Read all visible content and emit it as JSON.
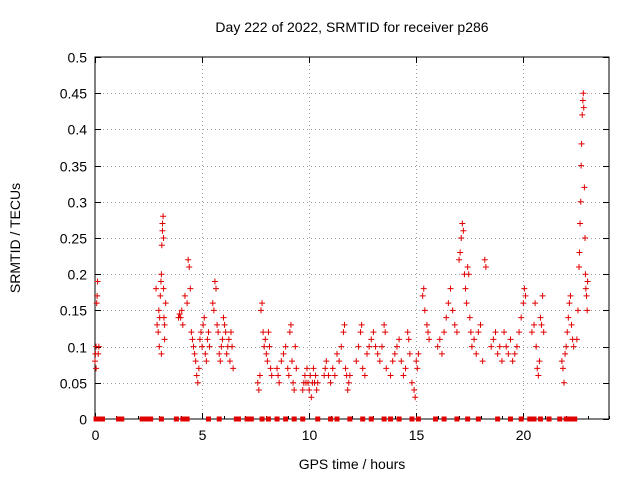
{
  "chart_data": {
    "type": "scatter",
    "title": "Day 222 of 2022, SRMTID for receiver p286",
    "xlabel": "GPS time / hours",
    "ylabel": "SRMTID / TECUs",
    "xlim": [
      0,
      24
    ],
    "ylim": [
      0,
      0.5
    ],
    "xticks": [
      0,
      5,
      10,
      15,
      20
    ],
    "yticks": [
      0,
      0.05,
      0.1,
      0.15,
      0.2,
      0.25,
      0.3,
      0.35,
      0.4,
      0.45,
      0.5
    ],
    "ytick_labels": [
      "0",
      "0.05",
      "0.1",
      "0.15",
      "0.2",
      "0.25",
      "0.3",
      "0.35",
      "0.4",
      "0.45",
      "0.5"
    ],
    "grid": true,
    "marker": "+",
    "color": "#e00000",
    "series": [
      {
        "name": "SRMTID",
        "points": [
          [
            0.0,
            0.08
          ],
          [
            0.02,
            0.09
          ],
          [
            0.05,
            0.1
          ],
          [
            0.05,
            0.07
          ],
          [
            0.08,
            0.16
          ],
          [
            0.1,
            0.17
          ],
          [
            0.12,
            0.19
          ],
          [
            0.15,
            0.09
          ],
          [
            0.18,
            0.1
          ],
          [
            2.9,
            0.13
          ],
          [
            2.95,
            0.12
          ],
          [
            2.98,
            0.15
          ],
          [
            3.0,
            0.1
          ],
          [
            3.02,
            0.14
          ],
          [
            3.05,
            0.17
          ],
          [
            3.08,
            0.19
          ],
          [
            3.1,
            0.2
          ],
          [
            3.12,
            0.24
          ],
          [
            3.15,
            0.26
          ],
          [
            3.15,
            0.27
          ],
          [
            3.18,
            0.28
          ],
          [
            3.2,
            0.25
          ],
          [
            3.2,
            0.18
          ],
          [
            3.22,
            0.14
          ],
          [
            3.25,
            0.13
          ],
          [
            3.25,
            0.11
          ],
          [
            3.1,
            0.09
          ],
          [
            3.3,
            0.16
          ],
          [
            2.85,
            0.18
          ],
          [
            3.9,
            0.14
          ],
          [
            3.95,
            0.145
          ],
          [
            4.0,
            0.14
          ],
          [
            4.05,
            0.15
          ],
          [
            4.1,
            0.13
          ],
          [
            4.2,
            0.17
          ],
          [
            4.3,
            0.16
          ],
          [
            4.35,
            0.22
          ],
          [
            4.4,
            0.21
          ],
          [
            4.45,
            0.18
          ],
          [
            4.5,
            0.12
          ],
          [
            4.55,
            0.11
          ],
          [
            4.6,
            0.1
          ],
          [
            4.65,
            0.09
          ],
          [
            4.7,
            0.08
          ],
          [
            4.75,
            0.06
          ],
          [
            4.8,
            0.05
          ],
          [
            4.85,
            0.07
          ],
          [
            4.9,
            0.11
          ],
          [
            4.95,
            0.12
          ],
          [
            5.0,
            0.1
          ],
          [
            5.05,
            0.13
          ],
          [
            5.1,
            0.14
          ],
          [
            5.15,
            0.09
          ],
          [
            5.2,
            0.08
          ],
          [
            5.25,
            0.11
          ],
          [
            5.3,
            0.12
          ],
          [
            5.35,
            0.1
          ],
          [
            5.5,
            0.16
          ],
          [
            5.55,
            0.15
          ],
          [
            5.6,
            0.19
          ],
          [
            5.65,
            0.18
          ],
          [
            5.7,
            0.13
          ],
          [
            5.75,
            0.12
          ],
          [
            5.8,
            0.09
          ],
          [
            5.85,
            0.08
          ],
          [
            5.9,
            0.1
          ],
          [
            5.95,
            0.11
          ],
          [
            6.0,
            0.14
          ],
          [
            6.05,
            0.13
          ],
          [
            6.1,
            0.12
          ],
          [
            6.15,
            0.09
          ],
          [
            6.2,
            0.1
          ],
          [
            6.25,
            0.11
          ],
          [
            6.3,
            0.08
          ],
          [
            6.35,
            0.12
          ],
          [
            6.4,
            0.1
          ],
          [
            6.45,
            0.07
          ],
          [
            7.6,
            0.05
          ],
          [
            7.65,
            0.04
          ],
          [
            7.7,
            0.06
          ],
          [
            7.75,
            0.15
          ],
          [
            7.8,
            0.16
          ],
          [
            7.85,
            0.12
          ],
          [
            7.9,
            0.1
          ],
          [
            7.95,
            0.11
          ],
          [
            8.0,
            0.09
          ],
          [
            8.05,
            0.08
          ],
          [
            8.1,
            0.12
          ],
          [
            8.15,
            0.1
          ],
          [
            8.2,
            0.07
          ],
          [
            8.25,
            0.06
          ],
          [
            8.5,
            0.07
          ],
          [
            8.55,
            0.06
          ],
          [
            8.6,
            0.05
          ],
          [
            8.7,
            0.08
          ],
          [
            8.8,
            0.09
          ],
          [
            8.9,
            0.1
          ],
          [
            9.0,
            0.07
          ],
          [
            9.05,
            0.06
          ],
          [
            9.1,
            0.12
          ],
          [
            9.15,
            0.13
          ],
          [
            9.2,
            0.08
          ],
          [
            9.25,
            0.05
          ],
          [
            9.3,
            0.04
          ],
          [
            9.35,
            0.1
          ],
          [
            9.4,
            0.07
          ],
          [
            9.7,
            0.04
          ],
          [
            9.75,
            0.05
          ],
          [
            9.8,
            0.06
          ],
          [
            9.85,
            0.05
          ],
          [
            9.9,
            0.07
          ],
          [
            9.95,
            0.05
          ],
          [
            10.0,
            0.04
          ],
          [
            10.05,
            0.06
          ],
          [
            10.1,
            0.03
          ],
          [
            10.15,
            0.05
          ],
          [
            10.2,
            0.07
          ],
          [
            10.25,
            0.05
          ],
          [
            10.3,
            0.06
          ],
          [
            10.35,
            0.04
          ],
          [
            10.4,
            0.05
          ],
          [
            10.7,
            0.06
          ],
          [
            10.75,
            0.07
          ],
          [
            10.8,
            0.08
          ],
          [
            10.9,
            0.06
          ],
          [
            11.0,
            0.05
          ],
          [
            11.1,
            0.07
          ],
          [
            11.2,
            0.06
          ],
          [
            11.3,
            0.09
          ],
          [
            11.4,
            0.08
          ],
          [
            11.5,
            0.1
          ],
          [
            11.6,
            0.12
          ],
          [
            11.65,
            0.13
          ],
          [
            11.7,
            0.07
          ],
          [
            11.75,
            0.06
          ],
          [
            11.8,
            0.04
          ],
          [
            11.85,
            0.05
          ],
          [
            11.9,
            0.06
          ],
          [
            12.2,
            0.08
          ],
          [
            12.3,
            0.1
          ],
          [
            12.4,
            0.12
          ],
          [
            12.45,
            0.13
          ],
          [
            12.5,
            0.07
          ],
          [
            12.6,
            0.06
          ],
          [
            12.7,
            0.09
          ],
          [
            12.8,
            0.1
          ],
          [
            12.9,
            0.11
          ],
          [
            13.0,
            0.12
          ],
          [
            13.1,
            0.1
          ],
          [
            13.2,
            0.09
          ],
          [
            13.3,
            0.08
          ],
          [
            13.4,
            0.1
          ],
          [
            13.5,
            0.13
          ],
          [
            13.55,
            0.12
          ],
          [
            13.6,
            0.07
          ],
          [
            13.8,
            0.06
          ],
          [
            13.9,
            0.08
          ],
          [
            14.0,
            0.09
          ],
          [
            14.1,
            0.1
          ],
          [
            14.2,
            0.11
          ],
          [
            14.3,
            0.08
          ],
          [
            14.4,
            0.06
          ],
          [
            14.5,
            0.07
          ],
          [
            14.6,
            0.12
          ],
          [
            14.65,
            0.11
          ],
          [
            14.7,
            0.09
          ],
          [
            14.8,
            0.05
          ],
          [
            14.9,
            0.04
          ],
          [
            14.95,
            0.03
          ],
          [
            15.0,
            0.08
          ],
          [
            15.05,
            0.07
          ],
          [
            15.1,
            0.09
          ],
          [
            15.3,
            0.17
          ],
          [
            15.35,
            0.18
          ],
          [
            15.4,
            0.15
          ],
          [
            15.5,
            0.13
          ],
          [
            15.55,
            0.12
          ],
          [
            15.6,
            0.11
          ],
          [
            16.0,
            0.1
          ],
          [
            16.1,
            0.11
          ],
          [
            16.2,
            0.09
          ],
          [
            16.3,
            0.12
          ],
          [
            16.4,
            0.14
          ],
          [
            16.5,
            0.16
          ],
          [
            16.6,
            0.18
          ],
          [
            16.7,
            0.15
          ],
          [
            16.8,
            0.13
          ],
          [
            16.9,
            0.12
          ],
          [
            17.0,
            0.22
          ],
          [
            17.05,
            0.23
          ],
          [
            17.1,
            0.25
          ],
          [
            17.15,
            0.27
          ],
          [
            17.2,
            0.26
          ],
          [
            17.25,
            0.2
          ],
          [
            17.3,
            0.18
          ],
          [
            17.35,
            0.16
          ],
          [
            17.4,
            0.21
          ],
          [
            17.45,
            0.2
          ],
          [
            17.5,
            0.14
          ],
          [
            17.55,
            0.12
          ],
          [
            17.6,
            0.1
          ],
          [
            17.7,
            0.11
          ],
          [
            17.8,
            0.09
          ],
          [
            17.9,
            0.12
          ],
          [
            18.0,
            0.13
          ],
          [
            18.1,
            0.08
          ],
          [
            18.2,
            0.22
          ],
          [
            18.25,
            0.21
          ],
          [
            18.5,
            0.1
          ],
          [
            18.6,
            0.11
          ],
          [
            18.7,
            0.12
          ],
          [
            18.8,
            0.09
          ],
          [
            18.9,
            0.1
          ],
          [
            19.0,
            0.08
          ],
          [
            19.1,
            0.12
          ],
          [
            19.2,
            0.1
          ],
          [
            19.3,
            0.09
          ],
          [
            19.4,
            0.11
          ],
          [
            19.5,
            0.08
          ],
          [
            19.6,
            0.09
          ],
          [
            19.7,
            0.1
          ],
          [
            19.8,
            0.12
          ],
          [
            19.9,
            0.14
          ],
          [
            20.0,
            0.16
          ],
          [
            20.05,
            0.18
          ],
          [
            20.1,
            0.17
          ],
          [
            20.4,
            0.12
          ],
          [
            20.5,
            0.13
          ],
          [
            20.55,
            0.16
          ],
          [
            20.6,
            0.1
          ],
          [
            20.65,
            0.07
          ],
          [
            20.7,
            0.06
          ],
          [
            20.75,
            0.08
          ],
          [
            20.8,
            0.14
          ],
          [
            20.85,
            0.13
          ],
          [
            20.9,
            0.17
          ],
          [
            20.95,
            0.12
          ],
          [
            21.8,
            0.08
          ],
          [
            21.85,
            0.07
          ],
          [
            21.9,
            0.05
          ],
          [
            21.95,
            0.09
          ],
          [
            22.0,
            0.1
          ],
          [
            22.05,
            0.12
          ],
          [
            22.1,
            0.14
          ],
          [
            22.15,
            0.16
          ],
          [
            22.2,
            0.17
          ],
          [
            22.25,
            0.13
          ],
          [
            22.3,
            0.11
          ],
          [
            22.35,
            0.1
          ],
          [
            22.5,
            0.11
          ],
          [
            22.55,
            0.15
          ],
          [
            22.6,
            0.21
          ],
          [
            22.62,
            0.23
          ],
          [
            22.65,
            0.27
          ],
          [
            22.68,
            0.3
          ],
          [
            22.7,
            0.35
          ],
          [
            22.72,
            0.38
          ],
          [
            22.75,
            0.42
          ],
          [
            22.78,
            0.44
          ],
          [
            22.8,
            0.45
          ],
          [
            22.82,
            0.43
          ],
          [
            22.85,
            0.32
          ],
          [
            22.88,
            0.25
          ],
          [
            22.9,
            0.2
          ],
          [
            22.92,
            0.18
          ],
          [
            22.95,
            0.17
          ],
          [
            22.98,
            0.15
          ],
          [
            23.0,
            0.19
          ]
        ]
      }
    ],
    "zero_markers_x": [
      0.05,
      0.25,
      0.35,
      1.1,
      1.25,
      2.2,
      2.35,
      2.5,
      2.6,
      3.1,
      3.8,
      4.1,
      4.3,
      5.3,
      5.8,
      6.6,
      6.7,
      7.1,
      7.3,
      7.8,
      8.1,
      8.5,
      8.9,
      9.3,
      9.7,
      10.4,
      11.0,
      11.3,
      11.9,
      12.5,
      12.9,
      13.5,
      13.8,
      14.2,
      14.8,
      15.1,
      15.9,
      16.3,
      16.9,
      17.4,
      17.9,
      18.8,
      19.4,
      19.9,
      20.3,
      20.5,
      20.8,
      21.2,
      21.7,
      22.0,
      22.2,
      22.4
    ]
  }
}
